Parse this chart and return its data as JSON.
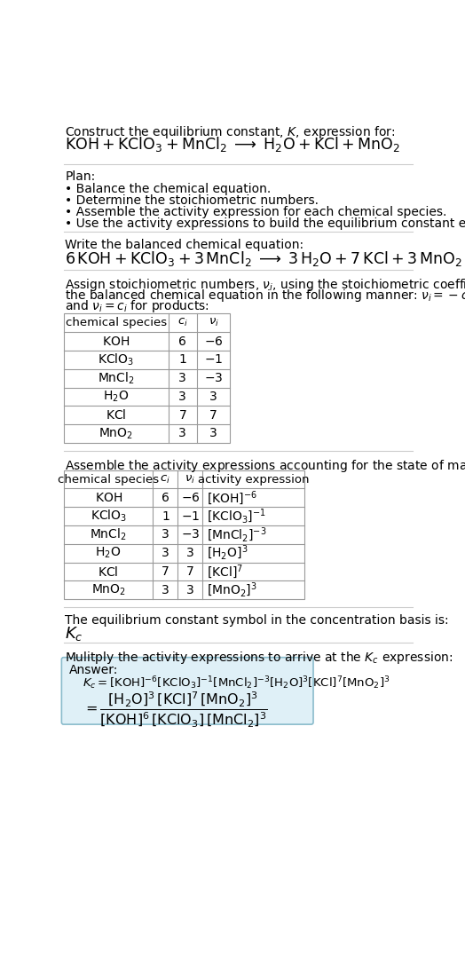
{
  "title_line1": "Construct the equilibrium constant, $K$, expression for:",
  "title_line2": "$\\mathrm{KOH + KClO_3 + MnCl_2 \\;\\longrightarrow\\; H_2O + KCl + MnO_2}$",
  "plan_header": "Plan:",
  "plan_items": [
    "• Balance the chemical equation.",
    "• Determine the stoichiometric numbers.",
    "• Assemble the activity expression for each chemical species.",
    "• Use the activity expressions to build the equilibrium constant expression."
  ],
  "balanced_eq_header": "Write the balanced chemical equation:",
  "balanced_eq": "$\\mathrm{6\\,KOH + KClO_3 + 3\\,MnCl_2 \\;\\longrightarrow\\; 3\\,H_2O + 7\\,KCl + 3\\,MnO_2}$",
  "stoich_text_lines": [
    "Assign stoichiometric numbers, $\\nu_i$, using the stoichiometric coefficients, $c_i$, from",
    "the balanced chemical equation in the following manner: $\\nu_i = -c_i$ for reactants",
    "and $\\nu_i = c_i$ for products:"
  ],
  "table1_headers": [
    "chemical species",
    "$c_i$",
    "$\\nu_i$"
  ],
  "table1_data": [
    [
      "$\\mathrm{KOH}$",
      "6",
      "$-6$"
    ],
    [
      "$\\mathrm{KClO_3}$",
      "1",
      "$-1$"
    ],
    [
      "$\\mathrm{MnCl_2}$",
      "3",
      "$-3$"
    ],
    [
      "$\\mathrm{H_2O}$",
      "3",
      "3"
    ],
    [
      "$\\mathrm{KCl}$",
      "7",
      "7"
    ],
    [
      "$\\mathrm{MnO_2}$",
      "3",
      "3"
    ]
  ],
  "assemble_text": "Assemble the activity expressions accounting for the state of matter and $\\nu_i$:",
  "table2_headers": [
    "chemical species",
    "$c_i$",
    "$\\nu_i$",
    "activity expression"
  ],
  "table2_data": [
    [
      "$\\mathrm{KOH}$",
      "6",
      "$-6$",
      "$[\\mathrm{KOH}]^{-6}$"
    ],
    [
      "$\\mathrm{KClO_3}$",
      "1",
      "$-1$",
      "$[\\mathrm{KClO_3}]^{-1}$"
    ],
    [
      "$\\mathrm{MnCl_2}$",
      "3",
      "$-3$",
      "$[\\mathrm{MnCl_2}]^{-3}$"
    ],
    [
      "$\\mathrm{H_2O}$",
      "3",
      "3",
      "$[\\mathrm{H_2O}]^{3}$"
    ],
    [
      "$\\mathrm{KCl}$",
      "7",
      "7",
      "$[\\mathrm{KCl}]^{7}$"
    ],
    [
      "$\\mathrm{MnO_2}$",
      "3",
      "3",
      "$[\\mathrm{MnO_2}]^{3}$"
    ]
  ],
  "kc_text": "The equilibrium constant symbol in the concentration basis is:",
  "kc_symbol": "$K_c$",
  "multiply_text": "Mulitply the activity expressions to arrive at the $K_c$ expression:",
  "answer_label": "Answer:",
  "answer_line1": "$K_c = [\\mathrm{KOH}]^{-6}[\\mathrm{KClO_3}]^{-1}[\\mathrm{MnCl_2}]^{-3}[\\mathrm{H_2O}]^{3}[\\mathrm{KCl}]^{7}[\\mathrm{MnO_2}]^{3}$",
  "answer_eq_lhs": "$= \\dfrac{[\\mathrm{H_2O}]^{3}\\,[\\mathrm{KCl}]^{7}\\,[\\mathrm{MnO_2}]^{3}}{[\\mathrm{KOH}]^{6}\\,[\\mathrm{KClO_3}]\\,[\\mathrm{MnCl_2}]^{3}}$",
  "bg_color": "#ffffff",
  "table_line_color": "#999999",
  "answer_box_bg": "#dff0f7",
  "answer_box_border": "#8bbccc",
  "sep_line_color": "#cccccc"
}
